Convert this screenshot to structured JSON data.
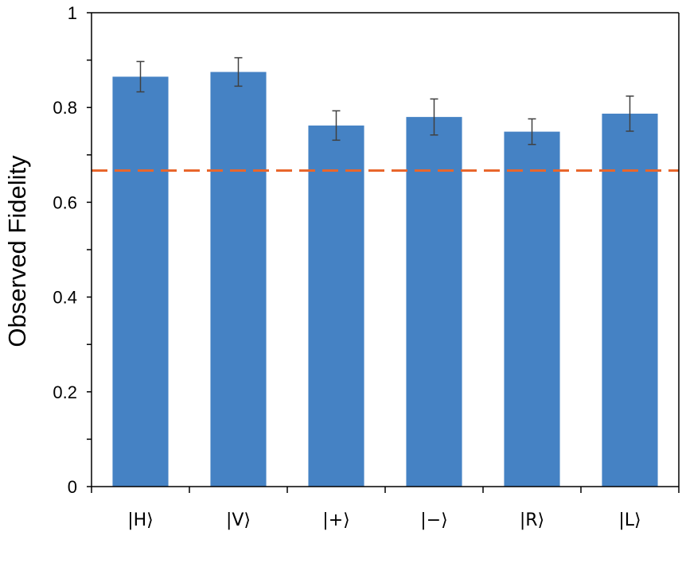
{
  "chart_data": {
    "type": "bar",
    "categories": [
      "|H⟩",
      "|V⟩",
      "|+⟩",
      "|−⟩",
      "|R⟩",
      "|L⟩"
    ],
    "values": [
      0.865,
      0.875,
      0.762,
      0.78,
      0.749,
      0.787
    ],
    "errors": [
      0.032,
      0.03,
      0.031,
      0.038,
      0.027,
      0.037
    ],
    "reference_line": 0.667,
    "title": "",
    "xlabel": "",
    "ylabel": "Observed Fidelity",
    "ylim": [
      0,
      1
    ],
    "yticks": [
      0,
      0.2,
      0.4,
      0.6,
      0.8,
      1
    ],
    "ytick_labels": [
      "0",
      "0.2",
      "0.4",
      "0.6",
      "0.8",
      "1"
    ],
    "grid": false,
    "legend": "none",
    "colors": {
      "bar": "#4582C4",
      "error_bar": "#404040",
      "reference_line": "#E8662C",
      "axis": "#000000"
    }
  }
}
